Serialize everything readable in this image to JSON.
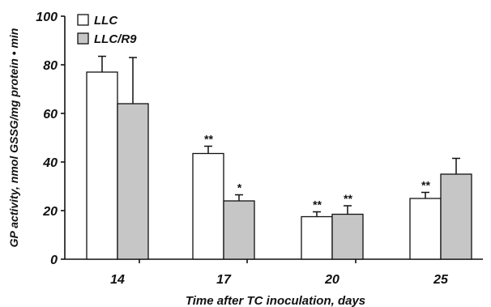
{
  "chart_data": {
    "type": "bar",
    "xlabel": "Time after TC inoculation, days",
    "ylabel": "GP activity, nmol GSSG/mg protein • min",
    "categories": [
      "14",
      "17",
      "20",
      "25"
    ],
    "ylim": [
      0,
      100
    ],
    "yticks": [
      0,
      20,
      40,
      60,
      80,
      100
    ],
    "grid": false,
    "legend_position": "top-left",
    "series": [
      {
        "name": "LLC",
        "color": "#ffffff",
        "values": [
          77,
          43.5,
          17.5,
          25
        ],
        "errors": [
          6.5,
          3,
          2,
          2.5
        ],
        "annotations": [
          "",
          "**",
          "**",
          "**"
        ]
      },
      {
        "name": "LLC/R9",
        "color": "#c6c6c6",
        "values": [
          64,
          24,
          18.5,
          35
        ],
        "errors": [
          19,
          2.5,
          3.5,
          6.5
        ],
        "annotations": [
          "",
          "*",
          "**",
          ""
        ]
      }
    ]
  }
}
